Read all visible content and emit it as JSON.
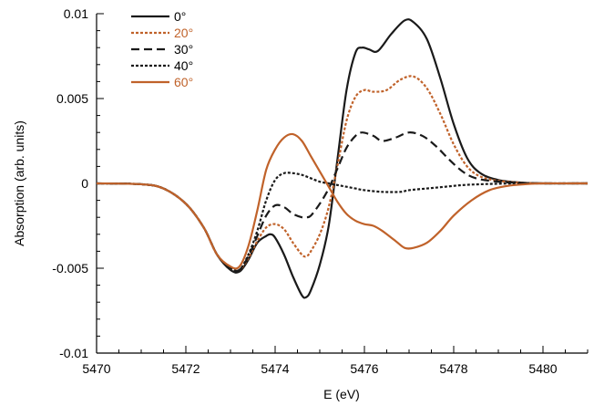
{
  "chart_data": {
    "type": "line",
    "title": "",
    "xlabel": "E (eV)",
    "ylabel": "Absorption (arb. units)",
    "xlim": [
      5470,
      5481
    ],
    "ylim": [
      -0.01,
      0.01
    ],
    "x_ticks": [
      5470,
      5472,
      5474,
      5476,
      5478,
      5480
    ],
    "x_tick_labels": [
      "5470",
      "5472",
      "5474",
      "5476",
      "5478",
      "5480"
    ],
    "x_minor_step": 0.5,
    "y_ticks": [
      -0.01,
      -0.005,
      0,
      0.005,
      0.01
    ],
    "y_tick_labels": [
      "-0.01",
      "-0.005",
      "0",
      "0.005",
      "0.01"
    ],
    "y_minor_step": 0.001,
    "grid": false,
    "legend_position": "top-left",
    "colors": {
      "black": "#1a1a1a",
      "orange": "#c0622a"
    },
    "series": [
      {
        "name": "0°",
        "color": "#1a1a1a",
        "dash": "solid",
        "label_color": "#000000",
        "x": [
          5470,
          5471,
          5471.5,
          5472,
          5472.4,
          5472.7,
          5473,
          5473.2,
          5473.4,
          5473.6,
          5473.8,
          5473.9,
          5474,
          5474.2,
          5474.4,
          5474.6,
          5474.7,
          5474.8,
          5475,
          5475.2,
          5475.4,
          5475.6,
          5475.8,
          5475.95,
          5476.1,
          5476.3,
          5476.6,
          5476.9,
          5477.1,
          5477.4,
          5477.7,
          5478,
          5478.3,
          5478.6,
          5479,
          5479.5,
          5480,
          5481
        ],
        "y": [
          0,
          -5e-05,
          -0.0003,
          -0.0012,
          -0.0026,
          -0.0042,
          -0.0051,
          -0.0052,
          -0.0045,
          -0.0035,
          -0.0031,
          -0.003,
          -0.0032,
          -0.0042,
          -0.0055,
          -0.0066,
          -0.0067,
          -0.0063,
          -0.0048,
          -0.0025,
          0.0015,
          0.0055,
          0.0077,
          0.008,
          0.0079,
          0.0078,
          0.0088,
          0.0096,
          0.0095,
          0.0085,
          0.0062,
          0.0035,
          0.0015,
          0.0006,
          0.0002,
          5e-05,
          0,
          0
        ]
      },
      {
        "name": "20°",
        "color": "#c0622a",
        "dash": "3 2",
        "label_color": "#c0622a",
        "x": [
          5470,
          5471,
          5471.5,
          5472,
          5472.4,
          5472.7,
          5473,
          5473.2,
          5473.4,
          5473.6,
          5473.8,
          5474,
          5474.2,
          5474.4,
          5474.6,
          5474.7,
          5474.8,
          5475,
          5475.2,
          5475.4,
          5475.6,
          5475.8,
          5476,
          5476.2,
          5476.5,
          5476.8,
          5477.1,
          5477.4,
          5477.7,
          5478,
          5478.3,
          5478.6,
          5479,
          5479.5,
          5480,
          5481
        ],
        "y": [
          0,
          -5e-05,
          -0.0003,
          -0.0012,
          -0.0026,
          -0.0042,
          -0.005,
          -0.0051,
          -0.0044,
          -0.0034,
          -0.0026,
          -0.0024,
          -0.0027,
          -0.0035,
          -0.0042,
          -0.0043,
          -0.004,
          -0.003,
          -0.0014,
          0.0011,
          0.0037,
          0.0051,
          0.0055,
          0.0054,
          0.0055,
          0.0061,
          0.0063,
          0.0056,
          0.0041,
          0.0023,
          0.001,
          0.0004,
          0.00015,
          4e-05,
          0,
          0
        ]
      },
      {
        "name": "30°",
        "color": "#1a1a1a",
        "dash": "9 5",
        "label_color": "#000000",
        "x": [
          5470,
          5471,
          5471.5,
          5472,
          5472.4,
          5472.7,
          5473,
          5473.2,
          5473.4,
          5473.6,
          5473.8,
          5474,
          5474.2,
          5474.4,
          5474.6,
          5474.7,
          5474.8,
          5475,
          5475.2,
          5475.4,
          5475.6,
          5475.8,
          5475.95,
          5476.2,
          5476.4,
          5476.7,
          5477,
          5477.3,
          5477.6,
          5477.9,
          5478.2,
          5478.5,
          5479,
          5479.5,
          5480,
          5481
        ],
        "y": [
          0,
          -5e-05,
          -0.0003,
          -0.0012,
          -0.0026,
          -0.0042,
          -0.005,
          -0.0051,
          -0.0043,
          -0.0031,
          -0.0019,
          -0.0013,
          -0.0014,
          -0.0018,
          -0.002,
          -0.002,
          -0.0019,
          -0.0012,
          -0.0003,
          0.0009,
          0.0021,
          0.0028,
          0.003,
          0.0028,
          0.0025,
          0.0027,
          0.003,
          0.0028,
          0.0022,
          0.0014,
          0.0007,
          0.0003,
          0.0001,
          3e-05,
          0,
          0
        ]
      },
      {
        "name": "40°",
        "color": "#1a1a1a",
        "dash": "3 2",
        "label_color": "#000000",
        "x": [
          5470,
          5471,
          5471.5,
          5472,
          5472.4,
          5472.7,
          5473,
          5473.2,
          5473.4,
          5473.6,
          5473.8,
          5474,
          5474.2,
          5474.4,
          5474.6,
          5474.8,
          5475,
          5475.2,
          5475.4,
          5475.6,
          5475.8,
          5476,
          5476.4,
          5476.8,
          5477,
          5477.4,
          5477.8,
          5478.2,
          5478.6,
          5479,
          5479.5,
          5480,
          5481
        ],
        "y": [
          0,
          -5e-05,
          -0.0003,
          -0.0012,
          -0.0026,
          -0.0042,
          -0.005,
          -0.0051,
          -0.0042,
          -0.0028,
          -0.001,
          0.0002,
          0.0006,
          0.0006,
          0.0005,
          0.0003,
          0.0001,
          0,
          -0.0001,
          -0.0002,
          -0.0003,
          -0.0004,
          -0.0005,
          -0.0005,
          -0.0004,
          -0.0003,
          -0.0002,
          -0.0001,
          -5e-05,
          -2e-05,
          0,
          0,
          0
        ]
      },
      {
        "name": "60°",
        "color": "#c0622a",
        "dash": "solid",
        "label_color": "#c0622a",
        "x": [
          5470,
          5471,
          5471.5,
          5472,
          5472.4,
          5472.7,
          5473,
          5473.2,
          5473.4,
          5473.6,
          5473.8,
          5474,
          5474.2,
          5474.4,
          5474.6,
          5474.8,
          5475,
          5475.2,
          5475.4,
          5475.6,
          5475.8,
          5476,
          5476.2,
          5476.4,
          5476.7,
          5476.9,
          5477.1,
          5477.4,
          5477.7,
          5478,
          5478.4,
          5478.8,
          5479.2,
          5479.6,
          5480,
          5481
        ],
        "y": [
          0,
          -5e-05,
          -0.0003,
          -0.0012,
          -0.0026,
          -0.0042,
          -0.0049,
          -0.0049,
          -0.0037,
          -0.0016,
          0.0008,
          0.002,
          0.0027,
          0.0029,
          0.0025,
          0.0016,
          0.0007,
          -0.0002,
          -0.0011,
          -0.0018,
          -0.0022,
          -0.0024,
          -0.0025,
          -0.0028,
          -0.0034,
          -0.0038,
          -0.0038,
          -0.0035,
          -0.0028,
          -0.0019,
          -0.001,
          -0.0004,
          -0.00015,
          -5e-05,
          0,
          0
        ]
      }
    ]
  }
}
